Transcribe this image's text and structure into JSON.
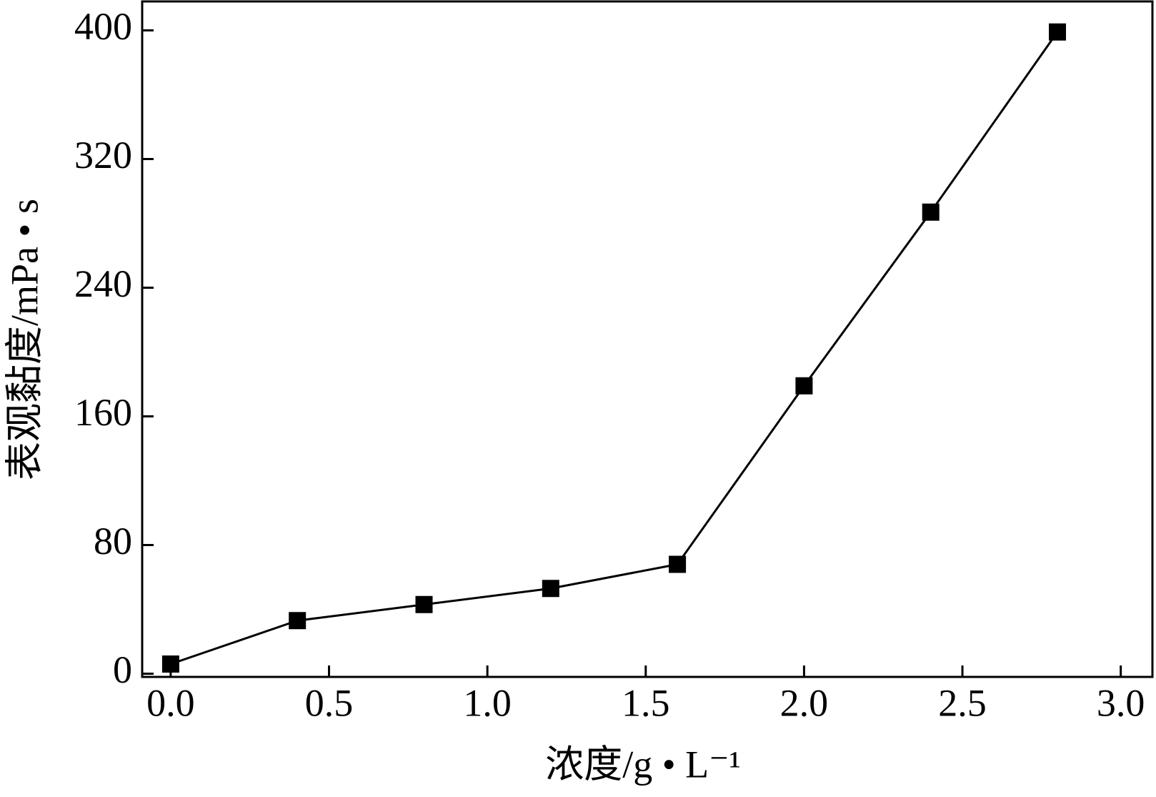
{
  "chart_data": {
    "type": "line",
    "x_label": "浓度/g • L⁻¹",
    "y_label": "表观黏度/mPa • s",
    "x": [
      0,
      0.4,
      0.8,
      1.2,
      1.6,
      2.0,
      2.4,
      2.8
    ],
    "series": [
      {
        "color": "#000000",
        "values": [
          6,
          33,
          43,
          53,
          68,
          179,
          287,
          399
        ]
      }
    ],
    "xlim": [
      -0.09,
      3.1
    ],
    "ylim": [
      -2,
      418
    ],
    "xticks": [
      {
        "value": 0,
        "label": "0.0"
      },
      {
        "value": 0.5,
        "label": "0.5"
      },
      {
        "value": 1,
        "label": "1.0"
      },
      {
        "value": 1.5,
        "label": "1.5"
      },
      {
        "value": 2,
        "label": "2.0"
      },
      {
        "value": 2.5,
        "label": "2.5"
      },
      {
        "value": 3,
        "label": "3.0"
      }
    ],
    "yticks": [
      0,
      80,
      160,
      240,
      320,
      400
    ]
  }
}
